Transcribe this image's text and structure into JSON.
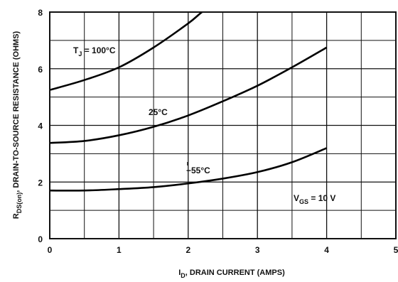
{
  "chart_data": {
    "type": "line",
    "xlabel": {
      "main": "I",
      "sub": "D",
      "rest": ", DRAIN CURRENT (AMPS)"
    },
    "ylabel": {
      "main": "R",
      "sub": "DS(on)",
      "rest": ", DRAIN-TO-SOURCE RESISTANCE (OHMS)"
    },
    "xlim": [
      0,
      5
    ],
    "ylim": [
      0,
      8
    ],
    "x_ticks": [
      0,
      1,
      2,
      3,
      4,
      5
    ],
    "x_tick_labels": [
      "0",
      "1",
      "2",
      "3",
      "4",
      "5"
    ],
    "y_ticks": [
      0,
      2,
      4,
      6,
      8
    ],
    "y_tick_labels": [
      "0",
      "2",
      "4",
      "6",
      "8"
    ],
    "grid": true,
    "series": [
      {
        "label": {
          "main": "T",
          "sub": "J",
          "rest": " = 100°C"
        },
        "x": [
          0,
          0.5,
          1,
          1.5,
          2,
          2.2,
          2.45
        ],
        "y": [
          5.25,
          5.6,
          6.05,
          6.75,
          7.6,
          8.0,
          8.4
        ]
      },
      {
        "label": {
          "main": "",
          "sub": "",
          "rest": "25°C"
        },
        "x": [
          0,
          0.5,
          1,
          1.5,
          2,
          2.5,
          3,
          3.5,
          4
        ],
        "y": [
          3.38,
          3.45,
          3.65,
          3.95,
          4.35,
          4.85,
          5.4,
          6.05,
          6.75
        ]
      },
      {
        "label": {
          "main": "",
          "sub": "",
          "rest": "−55°C"
        },
        "x": [
          0,
          0.5,
          1,
          1.5,
          2,
          2.5,
          3,
          3.5,
          4
        ],
        "y": [
          1.7,
          1.7,
          1.75,
          1.82,
          1.95,
          2.12,
          2.35,
          2.7,
          3.2
        ]
      }
    ],
    "annotations": [
      {
        "main": "V",
        "sub": "GS",
        "rest": " = 10 V"
      }
    ]
  }
}
